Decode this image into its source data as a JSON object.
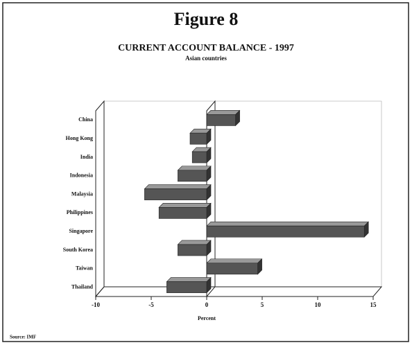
{
  "chart_data": {
    "type": "bar",
    "orientation": "horizontal",
    "header": "Figure 8",
    "title": "CURRENT ACCOUNT BALANCE - 1997",
    "subtitle": "Asian countries",
    "xlabel": "Percent",
    "source": "Source: IMF",
    "categories": [
      "China",
      "Hong Kong",
      "India",
      "Indonesia",
      "Malaysia",
      "Philippines",
      "Singapore",
      "South Korea",
      "Taiwan",
      "Thailand"
    ],
    "values": [
      2.6,
      -1.5,
      -1.3,
      -2.6,
      -5.6,
      -4.3,
      14.2,
      -2.6,
      4.6,
      -3.6
    ],
    "color": "#555555",
    "xlim": [
      -10,
      15
    ],
    "xticks": [
      -10,
      -5,
      0,
      5,
      10,
      15
    ]
  }
}
